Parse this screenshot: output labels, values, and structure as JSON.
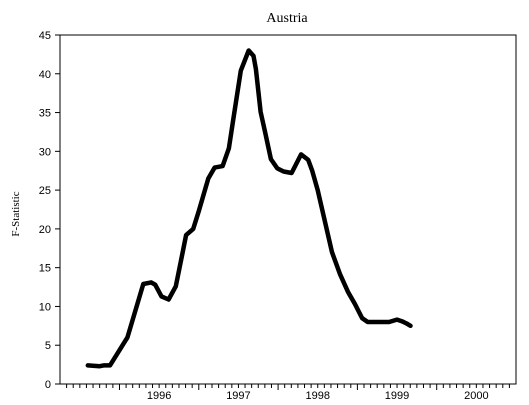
{
  "chart_data": {
    "type": "line",
    "title": "Austria",
    "xlabel": "",
    "ylabel": "F-Statistic",
    "ylim": [
      0,
      45
    ],
    "yticks": [
      0,
      5,
      10,
      15,
      20,
      25,
      30,
      35,
      40,
      45
    ],
    "xlim": [
      1995.25,
      2001.0
    ],
    "xticks": [
      1996,
      1997,
      1998,
      1999,
      2000
    ],
    "xtick_labels": [
      "1996",
      "1997",
      "1998",
      "1999",
      "2000"
    ],
    "grid": false,
    "legend": "none",
    "series": [
      {
        "color": "#000000",
        "x": [
          1995.6,
          1995.75,
          1995.8,
          1995.88,
          1996.1,
          1996.3,
          1996.4,
          1996.45,
          1996.53,
          1996.62,
          1996.71,
          1996.78,
          1996.84,
          1996.93,
          1997.0,
          1997.12,
          1997.2,
          1997.3,
          1997.38,
          1997.43,
          1997.53,
          1997.63,
          1997.69,
          1997.72,
          1997.78,
          1997.84,
          1997.91,
          1997.99,
          1998.07,
          1998.17,
          1998.29,
          1998.38,
          1998.43,
          1998.5,
          1998.68,
          1998.78,
          1998.88,
          1998.97,
          1999.06,
          1999.13,
          1999.2,
          1999.3,
          1999.4,
          1999.5,
          1999.56,
          1999.62,
          1999.67
        ],
        "y": [
          2.4,
          2.3,
          2.4,
          2.4,
          6.0,
          12.9,
          13.1,
          12.8,
          11.3,
          10.9,
          12.6,
          16.1,
          19.2,
          20.0,
          22.3,
          26.5,
          27.9,
          28.1,
          30.4,
          33.8,
          40.4,
          43.0,
          42.3,
          40.6,
          35.1,
          32.3,
          29.0,
          27.8,
          27.4,
          27.2,
          29.6,
          28.9,
          27.5,
          25.0,
          17.0,
          14.2,
          11.9,
          10.3,
          8.5,
          8.0,
          8.0,
          8.0,
          8.0,
          8.3,
          8.1,
          7.8,
          7.5
        ]
      }
    ]
  }
}
